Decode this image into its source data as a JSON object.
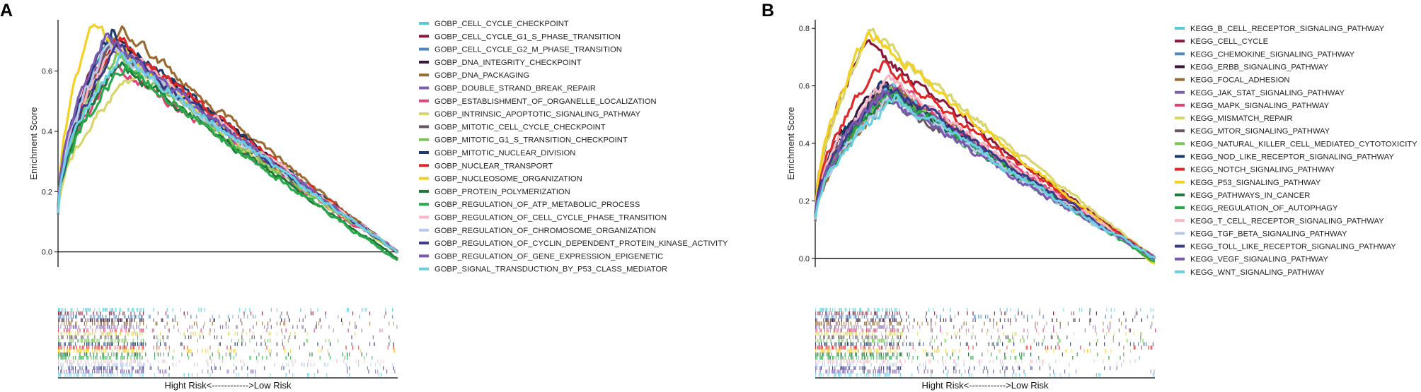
{
  "figure": {
    "panels": [
      {
        "letter": "A",
        "ylabel": "Enrichment Score",
        "xlabel": "Hight Risk<------------>Low Risk",
        "ylim": [
          -0.05,
          0.77
        ],
        "yticks": [
          0.0,
          0.2,
          0.4,
          0.6
        ],
        "ytick_labels": [
          "0.0",
          "0.2",
          "0.4",
          "0.6"
        ]
      },
      {
        "letter": "B",
        "ylabel": "Enrichment Score",
        "xlabel": "Hight Risk<------------>Low Risk",
        "ylim": [
          -0.03,
          0.83
        ],
        "yticks": [
          0.0,
          0.2,
          0.4,
          0.6,
          0.8
        ],
        "ytick_labels": [
          "0.0",
          "0.2",
          "0.4",
          "0.6",
          "0.8"
        ]
      }
    ]
  },
  "chart_data": [
    {
      "type": "line",
      "panel": "A",
      "title": "",
      "xlabel": "Hight Risk<------------>Low Risk",
      "ylabel": "Enrichment Score",
      "xlim": [
        0,
        1
      ],
      "ylim": [
        -0.05,
        0.77
      ],
      "grid": false,
      "legend": "right",
      "series": [
        {
          "name": "GOBP_CELL_CYCLE_CHECKPOINT",
          "color": "#5bc8d8",
          "peak_x": 0.17,
          "peak_y": 0.7,
          "end_y": 0.0
        },
        {
          "name": "GOBP_CELL_CYCLE_G1_S_PHASE_TRANSITION",
          "color": "#8b1a3a",
          "peak_x": 0.15,
          "peak_y": 0.71,
          "end_y": 0.0
        },
        {
          "name": "GOBP_CELL_CYCLE_G2_M_PHASE_TRANSITION",
          "color": "#4f88c0",
          "peak_x": 0.15,
          "peak_y": 0.72,
          "end_y": 0.0
        },
        {
          "name": "GOBP_DNA_INTEGRITY_CHECKPOINT",
          "color": "#3a1838",
          "peak_x": 0.18,
          "peak_y": 0.7,
          "end_y": 0.0
        },
        {
          "name": "GOBP_DNA_PACKAGING",
          "color": "#9a6a30",
          "peak_x": 0.19,
          "peak_y": 0.74,
          "end_y": 0.0
        },
        {
          "name": "GOBP_DOUBLE_STRAND_BREAK_REPAIR",
          "color": "#7d60b0",
          "peak_x": 0.15,
          "peak_y": 0.69,
          "end_y": 0.0
        },
        {
          "name": "GOBP_ESTABLISHMENT_OF_ORGANELLE_LOCALIZATION",
          "color": "#e2427a",
          "peak_x": 0.18,
          "peak_y": 0.62,
          "end_y": 0.0
        },
        {
          "name": "GOBP_INTRINSIC_APOPTOTIC_SIGNALING_PATHWAY",
          "color": "#d6d66a",
          "peak_x": 0.24,
          "peak_y": 0.6,
          "end_y": 0.0
        },
        {
          "name": "GOBP_MITOTIC_CELL_CYCLE_CHECKPOINT",
          "color": "#6a5868",
          "peak_x": 0.16,
          "peak_y": 0.68,
          "end_y": 0.0
        },
        {
          "name": "GOBP_MITOTIC_G1_S_TRANSITION_CHECKPOINT",
          "color": "#7cc45a",
          "peak_x": 0.17,
          "peak_y": 0.65,
          "end_y": 0.0
        },
        {
          "name": "GOBP_MITOTIC_NUCLEAR_DIVISION",
          "color": "#1e3a6a",
          "peak_x": 0.16,
          "peak_y": 0.73,
          "end_y": 0.0
        },
        {
          "name": "GOBP_NUCLEAR_TRANSPORT",
          "color": "#e02828",
          "peak_x": 0.18,
          "peak_y": 0.71,
          "end_y": 0.0
        },
        {
          "name": "GOBP_NUCLEOSOME_ORGANIZATION",
          "color": "#f5d020",
          "peak_x": 0.1,
          "peak_y": 0.75,
          "end_y": 0.0
        },
        {
          "name": "GOBP_PROTEIN_POLYMERIZATION",
          "color": "#1f7a3a",
          "peak_x": 0.18,
          "peak_y": 0.63,
          "end_y": -0.02
        },
        {
          "name": "GOBP_REGULATION_OF_ATP_METABOLIC_PROCESS",
          "color": "#2aa84a",
          "peak_x": 0.2,
          "peak_y": 0.62,
          "end_y": -0.03
        },
        {
          "name": "GOBP_REGULATION_OF_CELL_CYCLE_PHASE_TRANSITION",
          "color": "#f6b8c4",
          "peak_x": 0.17,
          "peak_y": 0.7,
          "end_y": 0.0
        },
        {
          "name": "GOBP_REGULATION_OF_CHROMOSOME_ORGANIZATION",
          "color": "#b8c8e8",
          "peak_x": 0.15,
          "peak_y": 0.69,
          "end_y": 0.0
        },
        {
          "name": "GOBP_REGULATION_OF_CYCLIN_DEPENDENT_PROTEIN_KINASE_ACTIVITY",
          "color": "#3a3a8a",
          "peak_x": 0.18,
          "peak_y": 0.68,
          "end_y": 0.0
        },
        {
          "name": "GOBP_REGULATION_OF_GENE_EXPRESSION_EPIGENETIC",
          "color": "#7a5ab0",
          "peak_x": 0.14,
          "peak_y": 0.72,
          "end_y": 0.0
        },
        {
          "name": "GOBP_SIGNAL_TRANSDUCTION_BY_P53_CLASS_MEDIATOR",
          "color": "#6ad0e0",
          "peak_x": 0.19,
          "peak_y": 0.66,
          "end_y": 0.0
        }
      ]
    },
    {
      "type": "line",
      "panel": "B",
      "title": "",
      "xlabel": "Hight Risk<------------>Low Risk",
      "ylabel": "Enrichment Score",
      "xlim": [
        0,
        1
      ],
      "ylim": [
        -0.03,
        0.83
      ],
      "grid": false,
      "legend": "right",
      "series": [
        {
          "name": "KEGG_B_CELL_RECEPTOR_SIGNALING_PATHWAY",
          "color": "#5bc8d8",
          "peak_x": 0.22,
          "peak_y": 0.6,
          "end_y": 0.0
        },
        {
          "name": "KEGG_CELL_CYCLE",
          "color": "#8b1a3a",
          "peak_x": 0.15,
          "peak_y": 0.75,
          "end_y": 0.0
        },
        {
          "name": "KEGG_CHEMOKINE_SIGNALING_PATHWAY",
          "color": "#4f88c0",
          "peak_x": 0.24,
          "peak_y": 0.58,
          "end_y": 0.0
        },
        {
          "name": "KEGG_ERBB_SIGNALING_PATHWAY",
          "color": "#3a1838",
          "peak_x": 0.2,
          "peak_y": 0.62,
          "end_y": 0.0
        },
        {
          "name": "KEGG_FOCAL_ADHESION",
          "color": "#9a6a30",
          "peak_x": 0.25,
          "peak_y": 0.58,
          "end_y": 0.0
        },
        {
          "name": "KEGG_JAK_STAT_SIGNALING_PATHWAY",
          "color": "#7d60b0",
          "peak_x": 0.21,
          "peak_y": 0.6,
          "end_y": 0.0
        },
        {
          "name": "KEGG_MAPK_SIGNALING_PATHWAY",
          "color": "#e2427a",
          "peak_x": 0.25,
          "peak_y": 0.6,
          "end_y": 0.0
        },
        {
          "name": "KEGG_MISMATCH_REPAIR",
          "color": "#d6d66a",
          "peak_x": 0.17,
          "peak_y": 0.79,
          "end_y": 0.0
        },
        {
          "name": "KEGG_MTOR_SIGNALING_PATHWAY",
          "color": "#6a5868",
          "peak_x": 0.2,
          "peak_y": 0.58,
          "end_y": 0.0
        },
        {
          "name": "KEGG_NATURAL_KILLER_CELL_MEDIATED_CYTOTOXICITY",
          "color": "#7cc45a",
          "peak_x": 0.22,
          "peak_y": 0.58,
          "end_y": 0.0
        },
        {
          "name": "KEGG_NOD_LIKE_RECEPTOR_SIGNALING_PATHWAY",
          "color": "#1e3a6a",
          "peak_x": 0.19,
          "peak_y": 0.6,
          "end_y": 0.0
        },
        {
          "name": "KEGG_NOTCH_SIGNALING_PATHWAY",
          "color": "#e02828",
          "peak_x": 0.2,
          "peak_y": 0.68,
          "end_y": 0.0
        },
        {
          "name": "KEGG_P53_SIGNALING_PATHWAY",
          "color": "#f5d020",
          "peak_x": 0.16,
          "peak_y": 0.79,
          "end_y": -0.02
        },
        {
          "name": "KEGG_PATHWAYS_IN_CANCER",
          "color": "#1f7a3a",
          "peak_x": 0.23,
          "peak_y": 0.57,
          "end_y": 0.0
        },
        {
          "name": "KEGG_REGULATION_OF_AUTOPHAGY",
          "color": "#2aa84a",
          "peak_x": 0.22,
          "peak_y": 0.58,
          "end_y": -0.01
        },
        {
          "name": "KEGG_T_CELL_RECEPTOR_SIGNALING_PATHWAY",
          "color": "#f6b8c4",
          "peak_x": 0.22,
          "peak_y": 0.63,
          "end_y": 0.0
        },
        {
          "name": "KEGG_TGF_BETA_SIGNALING_PATHWAY",
          "color": "#b8c8e8",
          "peak_x": 0.23,
          "peak_y": 0.56,
          "end_y": 0.0
        },
        {
          "name": "KEGG_TOLL_LIKE_RECEPTOR_SIGNALING_PATHWAY",
          "color": "#3a3a8a",
          "peak_x": 0.23,
          "peak_y": 0.6,
          "end_y": 0.0
        },
        {
          "name": "KEGG_VEGF_SIGNALING_PATHWAY",
          "color": "#7a5ab0",
          "peak_x": 0.2,
          "peak_y": 0.57,
          "end_y": 0.0
        },
        {
          "name": "KEGG_WNT_SIGNALING_PATHWAY",
          "color": "#6ad0e0",
          "peak_x": 0.24,
          "peak_y": 0.56,
          "end_y": 0.0
        }
      ]
    }
  ]
}
